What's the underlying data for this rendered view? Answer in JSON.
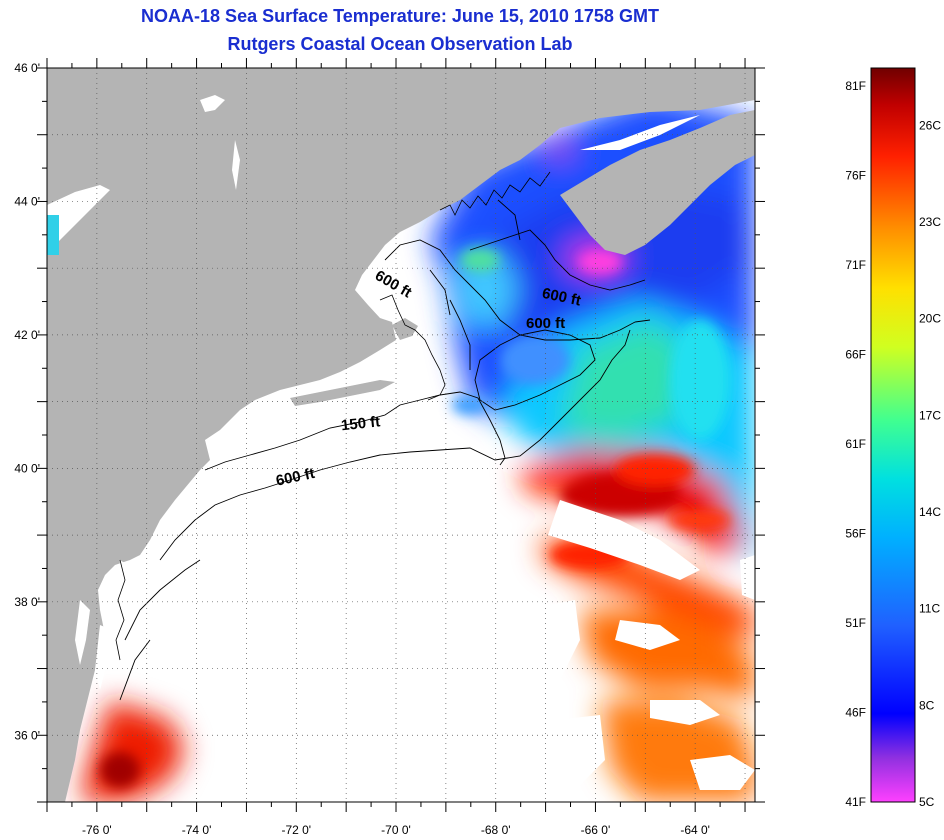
{
  "title": {
    "line1": "NOAA-18 Sea Surface Temperature:  June 15, 2010 1758 GMT",
    "line2": "Rutgers Coastal Ocean Observation Lab"
  },
  "map": {
    "lon_range": [
      -77.0,
      -62.8
    ],
    "lat_range": [
      35.0,
      46.0
    ],
    "lon_ticks": [
      {
        "value": -76,
        "label": "-76 0'"
      },
      {
        "value": -74,
        "label": "-74 0'"
      },
      {
        "value": -72,
        "label": "-72 0'"
      },
      {
        "value": -70,
        "label": "-70 0'"
      },
      {
        "value": -68,
        "label": "-68 0'"
      },
      {
        "value": -66,
        "label": "-66 0'"
      },
      {
        "value": -64,
        "label": "-64 0'"
      }
    ],
    "lat_ticks": [
      {
        "value": 46,
        "label": "46 0'"
      },
      {
        "value": 44,
        "label": "44 0'"
      },
      {
        "value": 42,
        "label": "42 0'"
      },
      {
        "value": 40,
        "label": "40 0'"
      },
      {
        "value": 38,
        "label": "38 0'"
      },
      {
        "value": 36,
        "label": "36 0'"
      }
    ],
    "contour_labels": [
      {
        "text": "600 ft",
        "lon": -70.1,
        "lat": 42.7,
        "angle": 30
      },
      {
        "text": "600 ft",
        "lon": -66.7,
        "lat": 42.5,
        "angle": 12
      },
      {
        "text": "600 ft",
        "lon": -67.0,
        "lat": 42.1,
        "angle": 0
      },
      {
        "text": "150 ft",
        "lon": -70.7,
        "lat": 40.6,
        "angle": -6
      },
      {
        "text": "600 ft",
        "lon": -72.0,
        "lat": 39.8,
        "angle": -12
      }
    ],
    "colors": {
      "land": "#b4b4b4",
      "cloud": "#ffffff",
      "contour": "#000000"
    }
  },
  "colorbar": {
    "temp_range_f": [
      41,
      82
    ],
    "fahrenheit_labels": [
      {
        "value": 81,
        "label": "81F"
      },
      {
        "value": 76,
        "label": "76F"
      },
      {
        "value": 71,
        "label": "71F"
      },
      {
        "value": 66,
        "label": "66F"
      },
      {
        "value": 61,
        "label": "61F"
      },
      {
        "value": 56,
        "label": "56F"
      },
      {
        "value": 51,
        "label": "51F"
      },
      {
        "value": 46,
        "label": "46F"
      },
      {
        "value": 41,
        "label": "41F"
      }
    ],
    "celsius_labels": [
      {
        "value": 26,
        "label": "26C"
      },
      {
        "value": 23,
        "label": "23C"
      },
      {
        "value": 20,
        "label": "20C"
      },
      {
        "value": 17,
        "label": "17C"
      },
      {
        "value": 14,
        "label": "14C"
      },
      {
        "value": 11,
        "label": "11C"
      },
      {
        "value": 8,
        "label": "8C"
      },
      {
        "value": 5,
        "label": "5C"
      }
    ],
    "gradient_stops": [
      "#ff40ff",
      "#7030d0",
      "#0000ff",
      "#2080ff",
      "#00d0ff",
      "#40ffa0",
      "#ffff00",
      "#ff9000",
      "#ff2000",
      "#800000"
    ]
  }
}
